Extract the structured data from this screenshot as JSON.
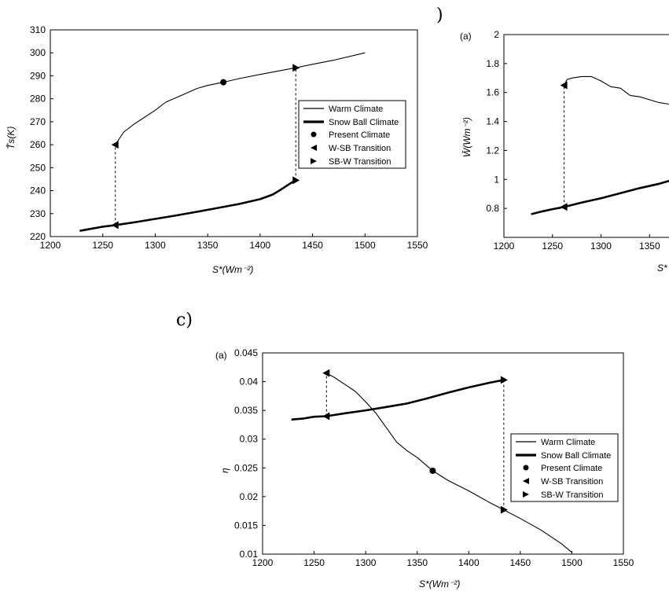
{
  "section_labels": {
    "c": "c)",
    "b_partial": ")"
  },
  "chart_data": [
    {
      "id": "ts",
      "type": "line",
      "panel_label": "",
      "ylabel": "T̄s(K)",
      "xlabel": "S*(Wm⁻²)",
      "xlim": [
        1200,
        1550
      ],
      "ylim": [
        220,
        310
      ],
      "xticks": [
        1200,
        1250,
        1300,
        1350,
        1400,
        1450,
        1500,
        1550
      ],
      "yticks": [
        220,
        230,
        240,
        250,
        260,
        270,
        280,
        290,
        300,
        310
      ],
      "legend": [
        "Warm Climate",
        "Snow Ball Climate",
        "Present Climate",
        "W-SB Transition",
        "SB-W Transition"
      ],
      "series": [
        {
          "name": "Warm Climate",
          "x": [
            1262,
            1270,
            1280,
            1290,
            1300,
            1310,
            1320,
            1330,
            1340,
            1350,
            1365,
            1380,
            1400,
            1420,
            1434,
            1450,
            1470,
            1500
          ],
          "y": [
            260,
            265.5,
            269,
            272,
            275,
            278.5,
            280.5,
            282.5,
            284.5,
            285.8,
            287.2,
            288.8,
            290.6,
            292.3,
            293.5,
            295,
            296.8,
            300
          ]
        },
        {
          "name": "Snow Ball Climate",
          "x": [
            1228,
            1240,
            1250,
            1262,
            1280,
            1300,
            1320,
            1340,
            1360,
            1380,
            1400,
            1412,
            1420,
            1430,
            1434
          ],
          "y": [
            222.5,
            223.5,
            224.3,
            225,
            226.2,
            227.7,
            229.2,
            230.8,
            232.5,
            234.2,
            236.3,
            238.3,
            240.5,
            243.5,
            244.5
          ]
        }
      ],
      "markers": [
        {
          "name": "Present Climate",
          "shape": "circle",
          "x": 1365,
          "y": 287.2
        },
        {
          "name": "W-SB Transition",
          "shape": "tri-left",
          "x": 1262,
          "y": 260
        },
        {
          "name": "W-SB Transition",
          "shape": "tri-left",
          "x": 1262,
          "y": 225
        },
        {
          "name": "SB-W Transition",
          "shape": "tri-right",
          "x": 1434,
          "y": 293.5
        },
        {
          "name": "SB-W Transition",
          "shape": "tri-right",
          "x": 1434,
          "y": 244.5
        }
      ],
      "transitions": [
        {
          "x": 1262,
          "y1": 225,
          "y2": 260
        },
        {
          "x": 1434,
          "y1": 244.5,
          "y2": 293.5
        }
      ]
    },
    {
      "id": "w",
      "type": "line",
      "panel_label": "(a)",
      "ylabel": "W̄(Wm⁻²)",
      "xlabel": "S*",
      "xlim": [
        1200,
        1370
      ],
      "ylim": [
        0.6,
        2.0
      ],
      "xticks": [
        1200,
        1250,
        1300,
        1350
      ],
      "yticks": [
        0.8,
        1,
        1.2,
        1.4,
        1.6,
        1.8,
        2
      ],
      "series": [
        {
          "name": "Warm Climate",
          "x": [
            1262,
            1265,
            1270,
            1280,
            1290,
            1300,
            1310,
            1320,
            1330,
            1340,
            1350,
            1360,
            1370
          ],
          "y": [
            1.65,
            1.69,
            1.7,
            1.71,
            1.71,
            1.68,
            1.64,
            1.63,
            1.58,
            1.57,
            1.55,
            1.53,
            1.52
          ]
        },
        {
          "name": "Snow Ball Climate",
          "x": [
            1228,
            1240,
            1250,
            1262,
            1280,
            1300,
            1320,
            1340,
            1360,
            1370
          ],
          "y": [
            0.76,
            0.78,
            0.795,
            0.81,
            0.84,
            0.87,
            0.905,
            0.94,
            0.97,
            0.99
          ]
        }
      ],
      "markers": [
        {
          "name": "W-SB Transition",
          "shape": "tri-left",
          "x": 1262,
          "y": 1.65
        },
        {
          "name": "W-SB Transition",
          "shape": "tri-left",
          "x": 1262,
          "y": 0.81
        }
      ],
      "transitions": [
        {
          "x": 1262,
          "y1": 0.81,
          "y2": 1.65
        }
      ]
    },
    {
      "id": "eta",
      "type": "line",
      "panel_label": "(a)",
      "ylabel": "η",
      "xlabel": "S*(Wm⁻²)",
      "xlim": [
        1200,
        1550
      ],
      "ylim": [
        0.01,
        0.045
      ],
      "xticks": [
        1200,
        1250,
        1300,
        1350,
        1400,
        1450,
        1500,
        1550
      ],
      "yticks": [
        0.01,
        0.015,
        0.02,
        0.025,
        0.03,
        0.035,
        0.04,
        0.045
      ],
      "legend": [
        "Warm Climate",
        "Snow Ball Climate",
        "Present Climate",
        "W-SB Transition",
        "SB-W Transition"
      ],
      "series": [
        {
          "name": "Warm Climate",
          "x": [
            1262,
            1270,
            1280,
            1290,
            1300,
            1310,
            1320,
            1330,
            1340,
            1350,
            1365,
            1380,
            1400,
            1420,
            1434,
            1450,
            1470,
            1490,
            1500
          ],
          "y": [
            0.0415,
            0.0407,
            0.0395,
            0.0383,
            0.0365,
            0.0345,
            0.032,
            0.0295,
            0.028,
            0.0268,
            0.0245,
            0.0228,
            0.021,
            0.019,
            0.0177,
            0.0162,
            0.0142,
            0.0118,
            0.0103
          ]
        },
        {
          "name": "Snow Ball Climate",
          "x": [
            1228,
            1240,
            1250,
            1262,
            1280,
            1300,
            1320,
            1340,
            1360,
            1380,
            1400,
            1420,
            1434
          ],
          "y": [
            0.0334,
            0.0336,
            0.0339,
            0.034,
            0.0345,
            0.035,
            0.0356,
            0.0362,
            0.0371,
            0.0381,
            0.039,
            0.0398,
            0.0403
          ]
        }
      ],
      "markers": [
        {
          "name": "Present Climate",
          "shape": "circle",
          "x": 1365,
          "y": 0.0245
        },
        {
          "name": "W-SB Transition",
          "shape": "tri-left",
          "x": 1262,
          "y": 0.0415
        },
        {
          "name": "W-SB Transition",
          "shape": "tri-left",
          "x": 1262,
          "y": 0.034
        },
        {
          "name": "SB-W Transition",
          "shape": "tri-right",
          "x": 1434,
          "y": 0.0403
        },
        {
          "name": "SB-W Transition",
          "shape": "tri-right",
          "x": 1434,
          "y": 0.0177
        }
      ],
      "transitions": [
        {
          "x": 1262,
          "y1": 0.034,
          "y2": 0.0415
        },
        {
          "x": 1434,
          "y1": 0.0177,
          "y2": 0.0403
        }
      ]
    }
  ]
}
